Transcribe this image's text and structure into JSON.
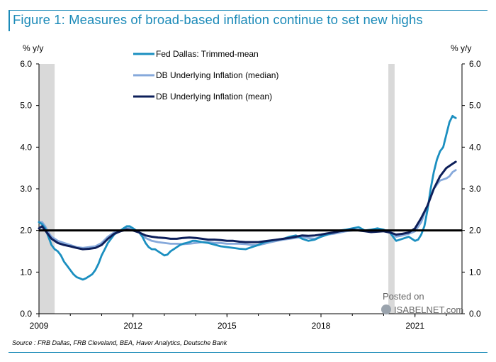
{
  "title": "Figure 1: Measures of broad-based inflation continue to set new highs",
  "source": "Source : FRB Dallas, FRB Cleveland, BEA, Haver Analytics, Deutsche Bank",
  "watermark": {
    "line1": "Posted on",
    "line2": "ISABELNET.com"
  },
  "colors": {
    "trimmed_mean": "#1b8fc0",
    "median": "#86a9db",
    "mean": "#0d1f5a",
    "reference": "#000000",
    "recession": "#d9d9d9",
    "title": "#1b8ab8"
  },
  "chart_data": {
    "type": "line",
    "title": "Figure 1: Measures of broad-based inflation continue to set new highs",
    "ylabel_left": "% y/y",
    "ylabel_right": "% y/y",
    "ylim": [
      0,
      6
    ],
    "xlim": [
      2009.0,
      2022.5
    ],
    "y_ticks": [
      "0.0",
      "1.0",
      "2.0",
      "3.0",
      "4.0",
      "5.0",
      "6.0"
    ],
    "x_ticks": [
      "2009",
      "2012",
      "2015",
      "2018",
      "2021"
    ],
    "reference_line": 2.0,
    "recessions": [
      [
        2009.0,
        2009.5
      ],
      [
        2020.15,
        2020.35
      ]
    ],
    "legend": [
      "Fed Dallas: Trimmed-mean",
      "DB Underlying Inflation (median)",
      "DB Underlying Inflation (mean)"
    ],
    "series": [
      {
        "name": "Fed Dallas: Trimmed-mean",
        "key": "trimmed_mean",
        "x": [
          2009.0,
          2009.1,
          2009.2,
          2009.3,
          2009.4,
          2009.5,
          2009.6,
          2009.7,
          2009.8,
          2009.9,
          2010.0,
          2010.1,
          2010.2,
          2010.3,
          2010.4,
          2010.5,
          2010.6,
          2010.7,
          2010.8,
          2010.9,
          2011.0,
          2011.1,
          2011.2,
          2011.3,
          2011.4,
          2011.5,
          2011.6,
          2011.7,
          2011.8,
          2011.9,
          2012.0,
          2012.1,
          2012.2,
          2012.3,
          2012.4,
          2012.5,
          2012.6,
          2012.7,
          2012.8,
          2012.9,
          2013.0,
          2013.1,
          2013.2,
          2013.3,
          2013.4,
          2013.5,
          2013.6,
          2013.7,
          2013.8,
          2013.9,
          2014.0,
          2014.2,
          2014.4,
          2014.6,
          2014.8,
          2015.0,
          2015.2,
          2015.4,
          2015.6,
          2015.8,
          2016.0,
          2016.2,
          2016.4,
          2016.6,
          2016.8,
          2017.0,
          2017.2,
          2017.4,
          2017.6,
          2017.8,
          2018.0,
          2018.2,
          2018.4,
          2018.6,
          2018.8,
          2019.0,
          2019.2,
          2019.4,
          2019.6,
          2019.8,
          2020.0,
          2020.2,
          2020.3,
          2020.4,
          2020.6,
          2020.8,
          2021.0,
          2021.1,
          2021.2,
          2021.3,
          2021.4,
          2021.5,
          2021.6,
          2021.7,
          2021.8,
          2021.9,
          2022.0,
          2022.1,
          2022.2,
          2022.25,
          2022.3
        ],
        "values": [
          2.2,
          2.15,
          2.05,
          1.85,
          1.65,
          1.55,
          1.5,
          1.4,
          1.25,
          1.15,
          1.05,
          0.95,
          0.88,
          0.85,
          0.82,
          0.85,
          0.9,
          0.95,
          1.05,
          1.2,
          1.4,
          1.55,
          1.7,
          1.8,
          1.9,
          1.95,
          2.0,
          2.05,
          2.1,
          2.1,
          2.05,
          2.0,
          1.95,
          1.85,
          1.7,
          1.6,
          1.55,
          1.55,
          1.5,
          1.45,
          1.4,
          1.42,
          1.5,
          1.55,
          1.6,
          1.65,
          1.68,
          1.7,
          1.72,
          1.75,
          1.75,
          1.72,
          1.7,
          1.66,
          1.62,
          1.6,
          1.58,
          1.56,
          1.55,
          1.6,
          1.65,
          1.72,
          1.75,
          1.78,
          1.8,
          1.85,
          1.88,
          1.8,
          1.75,
          1.78,
          1.85,
          1.9,
          1.95,
          2.0,
          2.02,
          2.05,
          2.08,
          2.0,
          2.02,
          2.05,
          2.02,
          1.95,
          1.85,
          1.75,
          1.8,
          1.85,
          1.75,
          1.78,
          1.9,
          2.1,
          2.5,
          3.0,
          3.4,
          3.7,
          3.9,
          4.0,
          4.3,
          4.6,
          4.75,
          4.72,
          4.7
        ]
      },
      {
        "name": "DB Underlying Inflation (median)",
        "key": "median",
        "x": [
          2009.0,
          2009.1,
          2009.2,
          2009.3,
          2009.4,
          2009.6,
          2009.8,
          2010.0,
          2010.2,
          2010.4,
          2010.6,
          2010.8,
          2011.0,
          2011.2,
          2011.4,
          2011.6,
          2011.8,
          2012.0,
          2012.2,
          2012.4,
          2012.6,
          2012.8,
          2013.0,
          2013.2,
          2013.4,
          2013.6,
          2013.8,
          2014.0,
          2014.2,
          2014.4,
          2014.6,
          2014.8,
          2015.0,
          2015.2,
          2015.4,
          2015.6,
          2015.8,
          2016.0,
          2016.2,
          2016.4,
          2016.6,
          2016.8,
          2017.0,
          2017.2,
          2017.4,
          2017.6,
          2017.8,
          2018.0,
          2018.2,
          2018.4,
          2018.6,
          2018.8,
          2019.0,
          2019.2,
          2019.4,
          2019.6,
          2019.8,
          2020.0,
          2020.2,
          2020.4,
          2020.6,
          2020.8,
          2021.0,
          2021.2,
          2021.4,
          2021.6,
          2021.8,
          2022.0,
          2022.1,
          2022.2,
          2022.3
        ],
        "values": [
          2.2,
          2.2,
          2.1,
          1.95,
          1.85,
          1.75,
          1.7,
          1.65,
          1.6,
          1.58,
          1.6,
          1.62,
          1.7,
          1.85,
          1.95,
          2.0,
          2.05,
          2.05,
          1.95,
          1.82,
          1.75,
          1.72,
          1.7,
          1.68,
          1.68,
          1.67,
          1.68,
          1.7,
          1.72,
          1.72,
          1.7,
          1.7,
          1.68,
          1.68,
          1.68,
          1.67,
          1.65,
          1.65,
          1.68,
          1.72,
          1.75,
          1.78,
          1.8,
          1.82,
          1.85,
          1.82,
          1.8,
          1.85,
          1.9,
          1.92,
          1.95,
          1.98,
          2.0,
          2.02,
          2.0,
          1.98,
          2.0,
          2.0,
          1.98,
          1.85,
          1.88,
          1.92,
          1.98,
          2.2,
          2.6,
          3.0,
          3.2,
          3.25,
          3.3,
          3.4,
          3.45
        ]
      },
      {
        "name": "DB Underlying Inflation (mean)",
        "key": "mean",
        "x": [
          2009.0,
          2009.1,
          2009.2,
          2009.3,
          2009.4,
          2009.6,
          2009.8,
          2010.0,
          2010.2,
          2010.4,
          2010.6,
          2010.8,
          2011.0,
          2011.2,
          2011.4,
          2011.6,
          2011.8,
          2012.0,
          2012.2,
          2012.4,
          2012.6,
          2012.8,
          2013.0,
          2013.2,
          2013.4,
          2013.6,
          2013.8,
          2014.0,
          2014.2,
          2014.4,
          2014.6,
          2014.8,
          2015.0,
          2015.2,
          2015.4,
          2015.6,
          2015.8,
          2016.0,
          2016.2,
          2016.4,
          2016.6,
          2016.8,
          2017.0,
          2017.2,
          2017.4,
          2017.6,
          2017.8,
          2018.0,
          2018.2,
          2018.4,
          2018.6,
          2018.8,
          2019.0,
          2019.2,
          2019.4,
          2019.6,
          2019.8,
          2020.0,
          2020.2,
          2020.4,
          2020.6,
          2020.8,
          2021.0,
          2021.2,
          2021.4,
          2021.6,
          2021.8,
          2022.0,
          2022.1,
          2022.2,
          2022.3
        ],
        "values": [
          2.05,
          2.1,
          2.0,
          1.9,
          1.8,
          1.7,
          1.65,
          1.62,
          1.58,
          1.55,
          1.56,
          1.58,
          1.65,
          1.8,
          1.92,
          1.98,
          2.02,
          2.0,
          1.95,
          1.88,
          1.85,
          1.83,
          1.82,
          1.8,
          1.8,
          1.82,
          1.83,
          1.82,
          1.8,
          1.78,
          1.78,
          1.77,
          1.75,
          1.75,
          1.73,
          1.72,
          1.72,
          1.72,
          1.74,
          1.76,
          1.78,
          1.8,
          1.82,
          1.85,
          1.88,
          1.87,
          1.88,
          1.9,
          1.93,
          1.95,
          1.98,
          2.0,
          2.02,
          2.0,
          1.98,
          1.96,
          1.97,
          1.98,
          1.95,
          1.9,
          1.92,
          1.95,
          2.05,
          2.3,
          2.6,
          3.0,
          3.3,
          3.5,
          3.55,
          3.6,
          3.65
        ]
      }
    ]
  }
}
